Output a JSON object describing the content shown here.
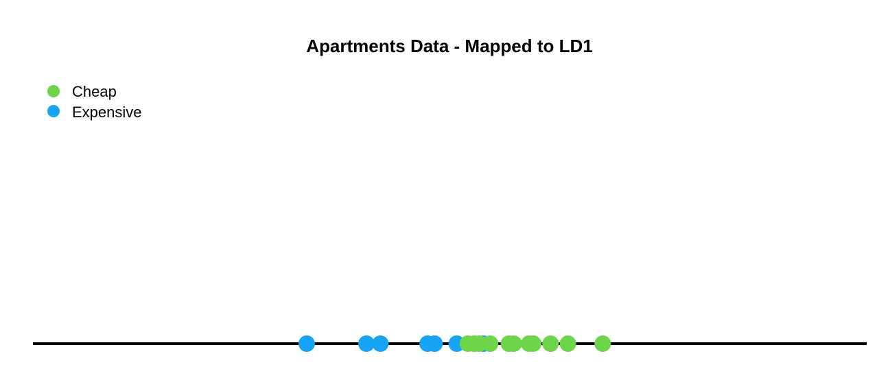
{
  "chart_data": {
    "type": "scatter",
    "title": "Apartments Data - Mapped to LD1",
    "xlabel": "",
    "ylabel": "",
    "xlim": [
      -0.2,
      1.0
    ],
    "grid": false,
    "legend_placement": "top-left",
    "series": [
      {
        "name": "Cheap",
        "color": "#6dd54a",
        "x": [
          0.426,
          0.435,
          0.442,
          0.458,
          0.485,
          0.492,
          0.514,
          0.52,
          0.545,
          0.57,
          0.62
        ]
      },
      {
        "name": "Expensive",
        "color": "#17a4f5",
        "x": [
          0.194,
          0.28,
          0.3,
          0.368,
          0.378,
          0.41,
          0.448
        ]
      }
    ]
  }
}
